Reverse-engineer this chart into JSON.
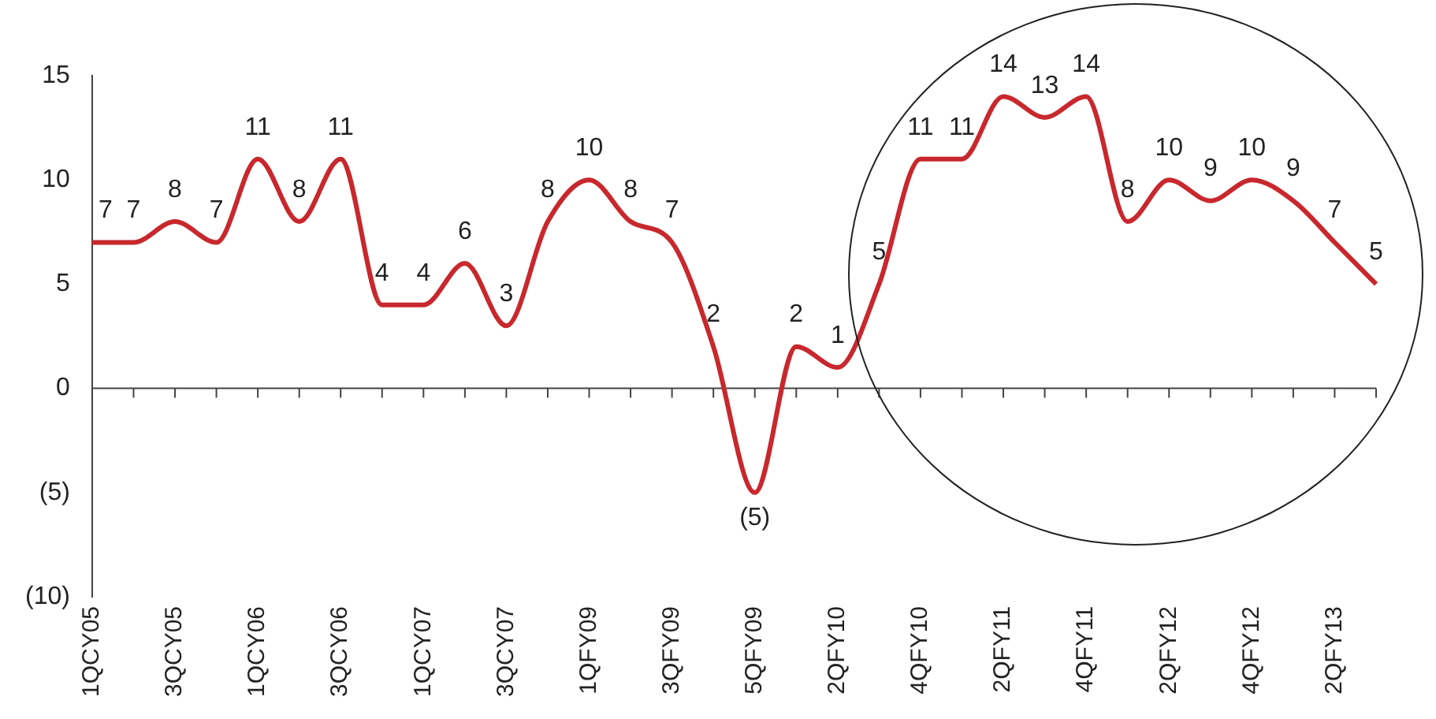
{
  "chart_data": {
    "type": "line",
    "categories": [
      "1QCY05",
      null,
      "3QCY05",
      null,
      "1QCY06",
      null,
      "3QCY06",
      null,
      "1QCY07",
      null,
      "3QCY07",
      null,
      "1QFY09",
      null,
      "3QFY09",
      null,
      "5QFY09",
      null,
      "2QFY10",
      null,
      "4QFY10",
      null,
      "2QFY11",
      null,
      "4QFY11",
      null,
      "2QFY12",
      null,
      "4QFY12",
      null,
      "2QFY13",
      null
    ],
    "series": [
      {
        "color": "#c8282d",
        "values": [
          7,
          7,
          8,
          7,
          11,
          8,
          11,
          4,
          4,
          6,
          3,
          8,
          10,
          8,
          7,
          2,
          -5,
          2,
          1,
          5,
          11,
          11,
          14,
          13,
          14,
          8,
          10,
          9,
          10,
          9,
          7,
          5
        ],
        "value_labels": [
          "7",
          "7",
          "8",
          "7",
          "11",
          "8",
          "11",
          "4",
          "4",
          "6",
          "3",
          "8",
          "10",
          "8",
          "7",
          "2",
          "(5)",
          "2",
          "1",
          "5",
          "11",
          "11",
          "14",
          "13",
          "14",
          "8",
          "10",
          "9",
          "10",
          "9",
          "7",
          "5"
        ]
      }
    ],
    "ylim": [
      -10,
      15
    ],
    "yticks": [
      {
        "value": -10,
        "label": "(10)"
      },
      {
        "value": -5,
        "label": "(5)"
      },
      0,
      5,
      10,
      15
    ],
    "ref_lines": [
      {
        "axis": "y",
        "value": 0
      }
    ],
    "grid": false,
    "legend": false,
    "marker": "none",
    "line_style": "solid"
  }
}
